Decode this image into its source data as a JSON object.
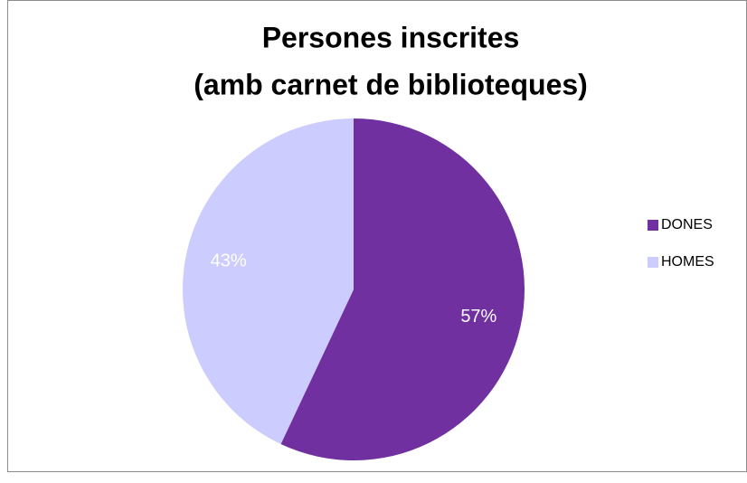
{
  "chart_data": {
    "type": "pie",
    "title": [
      "Persones inscrites",
      "(amb carnet de biblioteques)"
    ],
    "categories": [
      "DONES",
      "HOMES"
    ],
    "values": [
      57,
      43
    ],
    "value_labels": [
      "57%",
      "43%"
    ],
    "colors": [
      "#7030a0",
      "#ccccff"
    ],
    "legend": "right"
  }
}
